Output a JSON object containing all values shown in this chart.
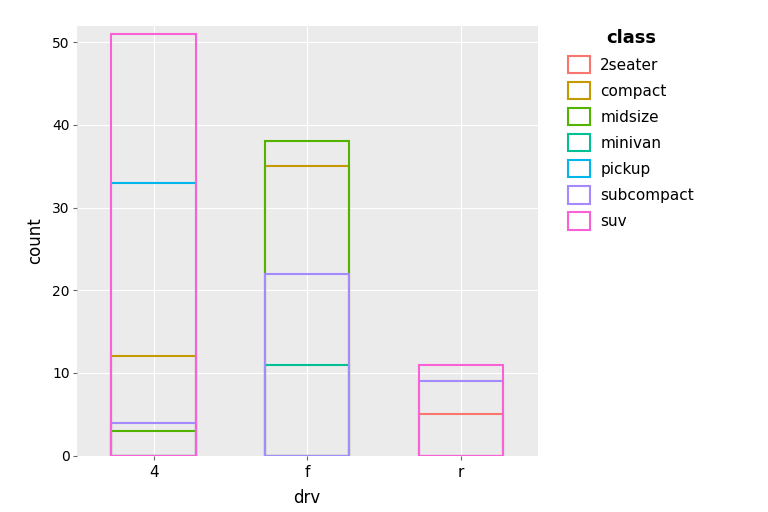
{
  "drv_labels": [
    "4",
    "f",
    "r"
  ],
  "classes": [
    "2seater",
    "compact",
    "midsize",
    "minivan",
    "pickup",
    "subcompact",
    "suv"
  ],
  "colors": {
    "2seater": "#F8766D",
    "compact": "#C49A00",
    "midsize": "#53B400",
    "minivan": "#00C094",
    "pickup": "#00B6EB",
    "subcompact": "#A58AFF",
    "suv": "#FB61D7"
  },
  "counts": {
    "4": {
      "2seater": 0,
      "compact": 12,
      "midsize": 3,
      "minivan": 0,
      "pickup": 33,
      "subcompact": 4,
      "suv": 51
    },
    "f": {
      "2seater": 0,
      "compact": 35,
      "midsize": 38,
      "minivan": 11,
      "pickup": 0,
      "subcompact": 22,
      "suv": 0
    },
    "r": {
      "2seater": 5,
      "compact": 0,
      "midsize": 0,
      "minivan": 0,
      "pickup": 0,
      "subcompact": 9,
      "suv": 11
    }
  },
  "xlabel": "drv",
  "ylabel": "count",
  "ylim": [
    0,
    52
  ],
  "yticks": [
    0,
    10,
    20,
    30,
    40,
    50
  ],
  "bar_width": 0.55,
  "bg_color": "#EBEBEB",
  "grid_color": "#FFFFFF",
  "legend_title": "class"
}
